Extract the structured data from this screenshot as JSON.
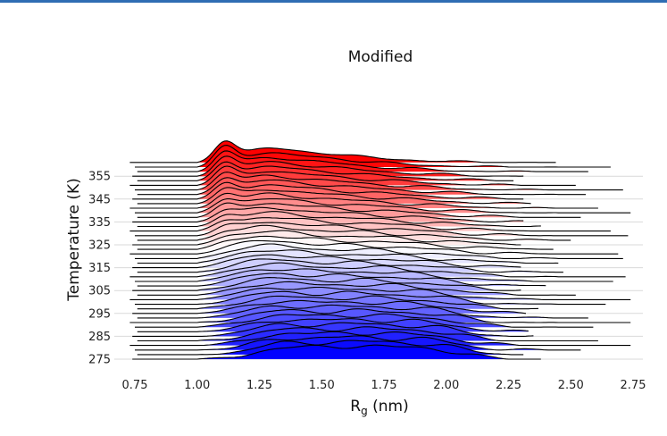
{
  "chart_data": {
    "type": "ridgeline",
    "title": "Modified",
    "xlabel": "R",
    "xlabel_subscript": "g",
    "xlabel_unit": " (nm)",
    "ylabel": "Temperature (K)",
    "xlim": [
      0.75,
      2.75
    ],
    "x_ticks": [
      "0.75",
      "1.00",
      "1.25",
      "1.50",
      "1.75",
      "2.00",
      "2.25",
      "2.50",
      "2.75"
    ],
    "y_ticks": [
      "275",
      "285",
      "295",
      "305",
      "315",
      "325",
      "335",
      "345",
      "355"
    ],
    "temperature_range": [
      275,
      360
    ],
    "temperature_step": 2,
    "color_scale": {
      "low": "#0000ff",
      "mid": "#ffffff",
      "high": "#ff0000",
      "mid_temperature": 322
    },
    "grid": "horizontal",
    "series_samples": [
      {
        "temperature": 275,
        "x": [
          0.75,
          1.0,
          1.25,
          1.4,
          1.6,
          1.8,
          2.0,
          2.2,
          2.4
        ],
        "density": [
          0.0,
          0.05,
          0.45,
          0.7,
          0.95,
          0.55,
          0.6,
          0.2,
          0.0
        ]
      },
      {
        "temperature": 321,
        "x": [
          0.75,
          1.0,
          1.1,
          1.25,
          1.4,
          1.6,
          1.8,
          2.1,
          2.5
        ],
        "density": [
          0.0,
          0.1,
          0.8,
          0.85,
          0.55,
          0.45,
          0.3,
          0.12,
          0.0
        ]
      },
      {
        "temperature": 361,
        "x": [
          0.75,
          1.0,
          1.1,
          1.25,
          1.4,
          1.6,
          1.8,
          2.1,
          2.5
        ],
        "density": [
          0.0,
          0.05,
          2.0,
          1.1,
          0.7,
          0.35,
          0.15,
          0.04,
          0.0
        ]
      }
    ]
  }
}
